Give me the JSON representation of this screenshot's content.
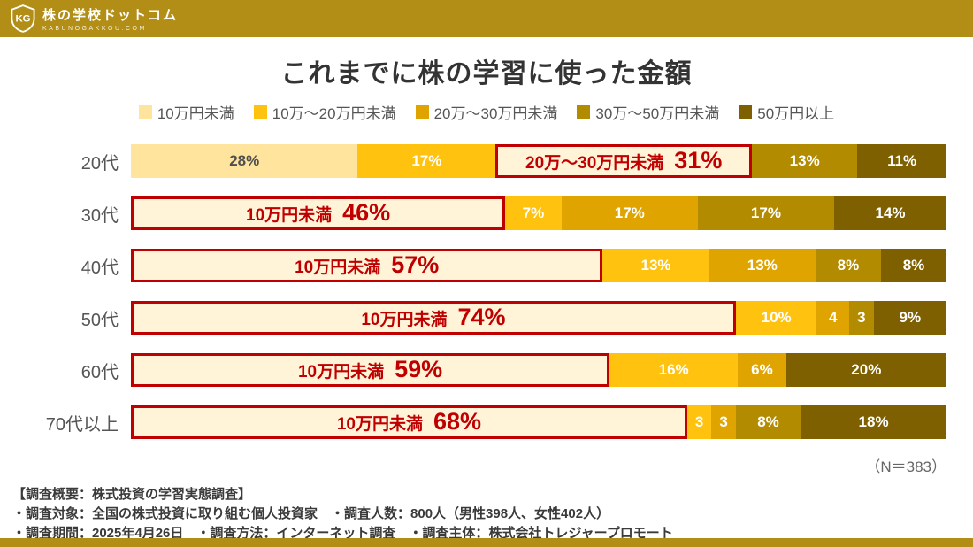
{
  "header": {
    "brand_name": "株の学校ドットコム",
    "brand_domain": "KABUNOGAKKOU.COM",
    "logo_monogram": "KG"
  },
  "title": "これまでに株の学習に使った金額",
  "colors": {
    "band": "#B28E17",
    "highlight_red": "#C00000",
    "highlight_bg": "#FFF4D8"
  },
  "chart_data": {
    "type": "bar",
    "orientation": "horizontal",
    "stacked": true,
    "unit": "%",
    "legend_position": "top",
    "series_labels": [
      "10万円未満",
      "10万〜20万円未満",
      "20万〜30万円未満",
      "30万〜50万円未満",
      "50万円以上"
    ],
    "series_colors": [
      "#FFE49E",
      "#FFC20E",
      "#DFA400",
      "#B38B00",
      "#7F6000"
    ],
    "categories": [
      "20代",
      "30代",
      "40代",
      "50代",
      "60代",
      "70代以上"
    ],
    "rows": [
      {
        "category": "20代",
        "segments": [
          {
            "value": 28,
            "label": "28%"
          },
          {
            "value": 17,
            "label": "17%"
          },
          {
            "value": 31,
            "label": "31%",
            "highlight": true,
            "highlight_text": "20万〜30万円未満"
          },
          {
            "value": 13,
            "label": "13%"
          },
          {
            "value": 11,
            "label": "11%"
          }
        ]
      },
      {
        "category": "30代",
        "segments": [
          {
            "value": 46,
            "label": "46%",
            "highlight": true,
            "highlight_text": "10万円未満"
          },
          {
            "value": 7,
            "label": "7%"
          },
          {
            "value": 17,
            "label": "17%"
          },
          {
            "value": 17,
            "label": "17%"
          },
          {
            "value": 14,
            "label": "14%"
          }
        ]
      },
      {
        "category": "40代",
        "segments": [
          {
            "value": 57,
            "label": "57%",
            "highlight": true,
            "highlight_text": "10万円未満"
          },
          {
            "value": 13,
            "label": "13%"
          },
          {
            "value": 13,
            "label": "13%"
          },
          {
            "value": 8,
            "label": "8%"
          },
          {
            "value": 8,
            "label": "8%"
          }
        ]
      },
      {
        "category": "50代",
        "segments": [
          {
            "value": 74,
            "label": "74%",
            "highlight": true,
            "highlight_text": "10万円未満"
          },
          {
            "value": 10,
            "label": "10%"
          },
          {
            "value": 4,
            "label": "4"
          },
          {
            "value": 3,
            "label": "3"
          },
          {
            "value": 9,
            "label": "9%"
          }
        ]
      },
      {
        "category": "60代",
        "segments": [
          {
            "value": 59,
            "label": "59%",
            "highlight": true,
            "highlight_text": "10万円未満"
          },
          {
            "value": 16,
            "label": "16%"
          },
          {
            "value": 6,
            "label": "6%"
          },
          {
            "value": 0,
            "label": ""
          },
          {
            "value": 20,
            "label": "20%"
          }
        ]
      },
      {
        "category": "70代以上",
        "segments": [
          {
            "value": 68,
            "label": "68%",
            "highlight": true,
            "highlight_text": "10万円未満"
          },
          {
            "value": 3,
            "label": "3"
          },
          {
            "value": 3,
            "label": "3"
          },
          {
            "value": 8,
            "label": "8%"
          },
          {
            "value": 18,
            "label": "18%"
          }
        ]
      }
    ],
    "sample_note": "（N＝383）"
  },
  "footer": {
    "lines": [
      "【調査概要：株式投資の学習実態調査】",
      "・調査対象：全国の株式投資に取り組む個人投資家　・調査人数：800人（男性398人、女性402人）",
      "・調査期間：2025年4月26日　・調査方法：インターネット調査　・調査主体：株式会社トレジャープロモート"
    ]
  }
}
